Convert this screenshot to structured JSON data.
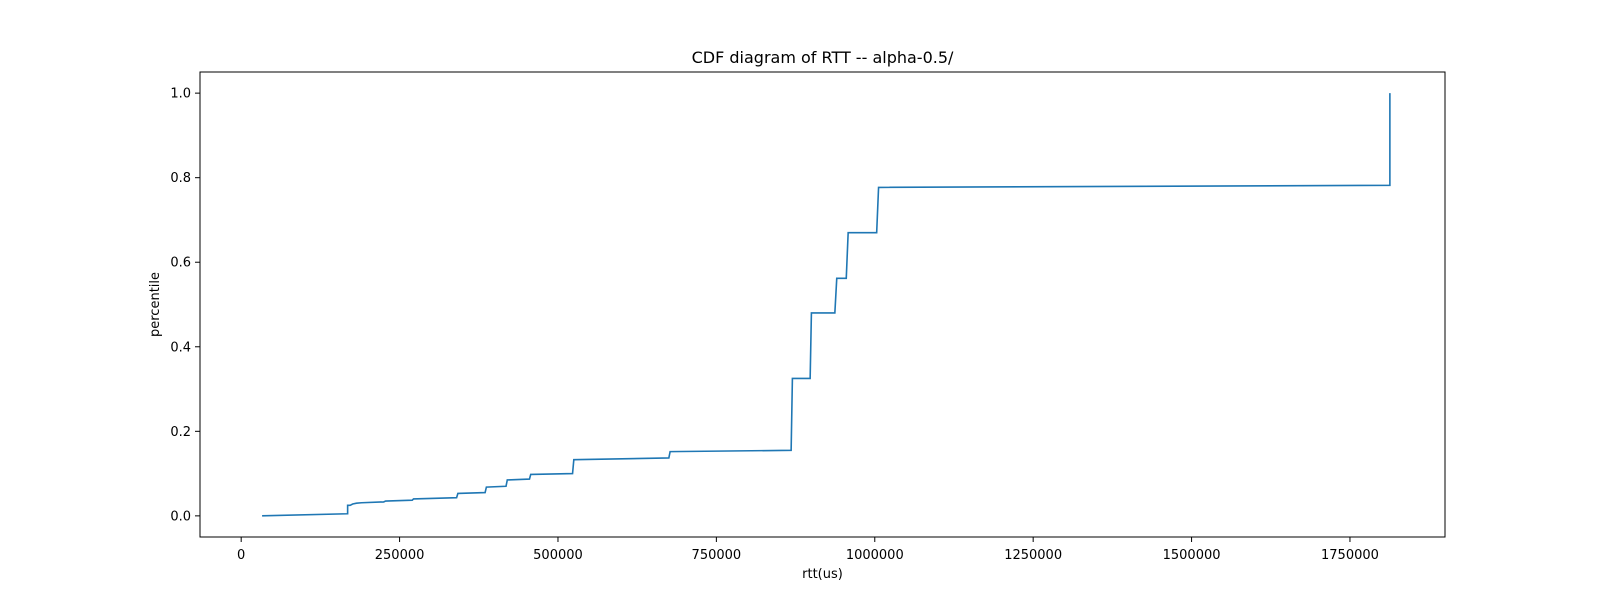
{
  "chart_data": {
    "type": "line",
    "title": "CDF diagram of RTT -- alpha-0.5/",
    "xlabel": "rtt(us)",
    "ylabel": "percentile",
    "xlim": [
      -65000,
      1900000
    ],
    "ylim": [
      -0.05,
      1.05
    ],
    "x_ticks": [
      0,
      250000,
      500000,
      750000,
      1000000,
      1250000,
      1500000,
      1750000
    ],
    "x_tick_labels": [
      "0",
      "250000",
      "500000",
      "750000",
      "1000000",
      "1250000",
      "1500000",
      "1750000"
    ],
    "y_ticks": [
      0.0,
      0.2,
      0.4,
      0.6,
      0.8,
      1.0
    ],
    "y_tick_labels": [
      "0.0",
      "0.2",
      "0.4",
      "0.6",
      "0.8",
      "1.0"
    ],
    "grid": false,
    "line_color": "#1f77b4",
    "series": [
      {
        "x": [
          33000,
          168000,
          168000,
          172000,
          176000,
          182000,
          190000,
          225000,
          228000,
          270000,
          272000,
          340000,
          342000,
          385000,
          387000,
          418000,
          420000,
          455000,
          457000,
          523000,
          525000,
          675000,
          677000,
          868000,
          870000,
          898000,
          900000,
          937000,
          940000,
          955000,
          958000,
          1003000,
          1006000,
          1812000,
          1813000,
          1813000
        ],
        "y": [
          0.0,
          0.005,
          0.025,
          0.025,
          0.028,
          0.03,
          0.031,
          0.033,
          0.035,
          0.037,
          0.04,
          0.043,
          0.053,
          0.055,
          0.068,
          0.07,
          0.085,
          0.087,
          0.098,
          0.1,
          0.133,
          0.137,
          0.152,
          0.155,
          0.325,
          0.325,
          0.48,
          0.48,
          0.562,
          0.562,
          0.67,
          0.67,
          0.777,
          0.782,
          0.782,
          1.0
        ]
      }
    ]
  }
}
